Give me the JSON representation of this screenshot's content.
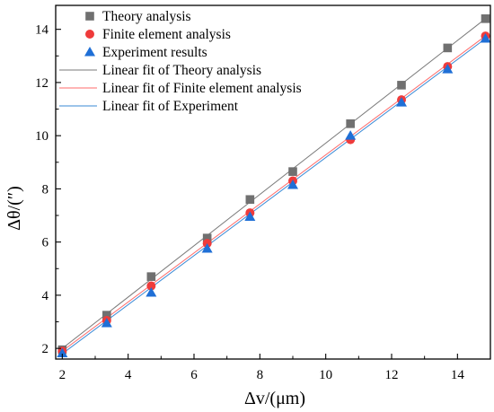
{
  "chart_data": {
    "type": "scatter",
    "xlabel": "Δv/(μm)",
    "ylabel": "Δθ/(″)",
    "xlim": [
      1.8,
      15.0
    ],
    "ylim": [
      1.6,
      14.9
    ],
    "xticks": [
      2,
      4,
      6,
      8,
      10,
      12,
      14
    ],
    "yticks": [
      2,
      4,
      6,
      8,
      10,
      12,
      14
    ],
    "grid": false,
    "legend_position": "top-left",
    "series": [
      {
        "name": "Theory analysis",
        "marker": "square",
        "color": "#707070",
        "x": [
          2.0,
          3.35,
          4.7,
          6.4,
          7.7,
          9.0,
          10.75,
          12.3,
          13.7,
          14.85
        ],
        "y": [
          1.95,
          3.25,
          4.7,
          6.15,
          7.6,
          8.65,
          10.45,
          11.9,
          13.3,
          14.4
        ]
      },
      {
        "name": "Finite element analysis",
        "marker": "circle",
        "color": "#ef3b3b",
        "x": [
          2.0,
          3.35,
          4.7,
          6.4,
          7.7,
          9.0,
          10.75,
          12.3,
          13.7,
          14.85
        ],
        "y": [
          1.9,
          3.05,
          4.35,
          5.95,
          7.1,
          8.3,
          9.85,
          11.35,
          12.6,
          13.75
        ]
      },
      {
        "name": "Experiment results",
        "marker": "triangle",
        "color": "#1f6fd6",
        "x": [
          2.0,
          3.35,
          4.7,
          6.4,
          7.7,
          9.0,
          10.75,
          12.3,
          13.7,
          14.85
        ],
        "y": [
          1.82,
          2.95,
          4.1,
          5.75,
          6.95,
          8.15,
          10.0,
          11.25,
          12.5,
          13.65
        ]
      }
    ],
    "fits": [
      {
        "name": "Linear fit of Theory analysis",
        "color": "#7a7a7a",
        "x": [
          2.0,
          14.85
        ],
        "y": [
          2.0,
          14.4
        ]
      },
      {
        "name": "Linear fit of Finite element analysis",
        "color": "#ff6b6b",
        "x": [
          2.0,
          14.85
        ],
        "y": [
          1.9,
          13.75
        ]
      },
      {
        "name": "Linear fit of Experiment",
        "color": "#3a8ad6",
        "x": [
          2.0,
          14.85
        ],
        "y": [
          1.8,
          13.65
        ]
      }
    ]
  }
}
